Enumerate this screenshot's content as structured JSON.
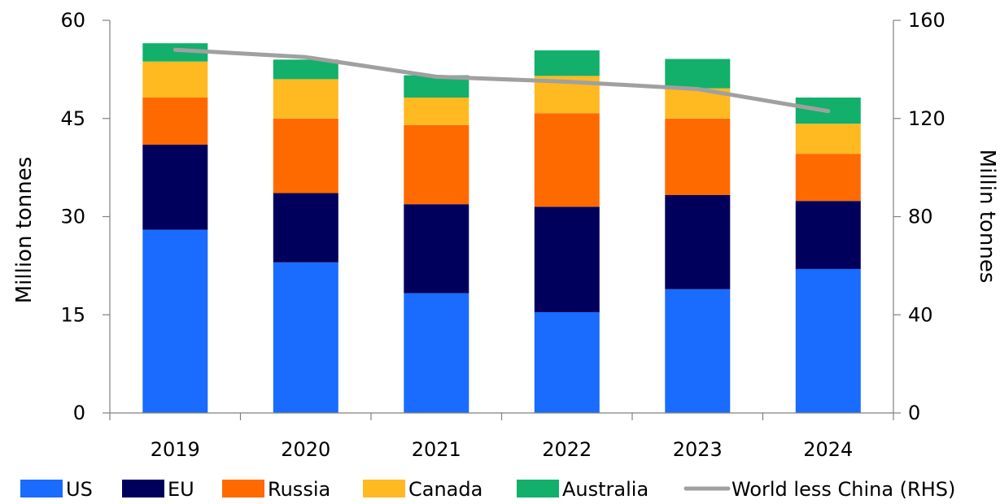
{
  "chart_data": {
    "type": "bar",
    "stacked": true,
    "categories": [
      "2019",
      "2020",
      "2021",
      "2022",
      "2023",
      "2024"
    ],
    "series": [
      {
        "name": "US",
        "color": "#1A6BFF",
        "values": [
          28.0,
          23.0,
          18.3,
          15.4,
          18.9,
          22.0
        ]
      },
      {
        "name": "EU",
        "color": "#00005C",
        "values": [
          13.0,
          10.6,
          13.6,
          16.1,
          14.4,
          10.4
        ]
      },
      {
        "name": "Russia",
        "color": "#FF6A00",
        "values": [
          7.2,
          11.4,
          12.1,
          14.3,
          11.7,
          7.2
        ]
      },
      {
        "name": "Canada",
        "color": "#FFBA22",
        "values": [
          5.5,
          6.0,
          4.2,
          5.7,
          4.6,
          4.6
        ]
      },
      {
        "name": "Australia",
        "color": "#12B06A",
        "values": [
          2.8,
          3.0,
          3.4,
          3.9,
          4.5,
          4.0
        ]
      }
    ],
    "line_series": {
      "name": "World less China (RHS)",
      "color": "#A0A0A0",
      "axis": "right",
      "values": [
        148,
        145,
        137,
        135,
        132,
        123
      ]
    },
    "y_left": {
      "label": "Million tonnes",
      "ylim": [
        0,
        60
      ],
      "ticks": [
        "0",
        "15",
        "30",
        "45",
        "60"
      ]
    },
    "y_right": {
      "label": "Millin tonnes",
      "ylim": [
        0,
        160
      ],
      "ticks": [
        "0",
        "40",
        "80",
        "120",
        "160"
      ]
    },
    "grid": false,
    "legend_position": "bottom"
  }
}
